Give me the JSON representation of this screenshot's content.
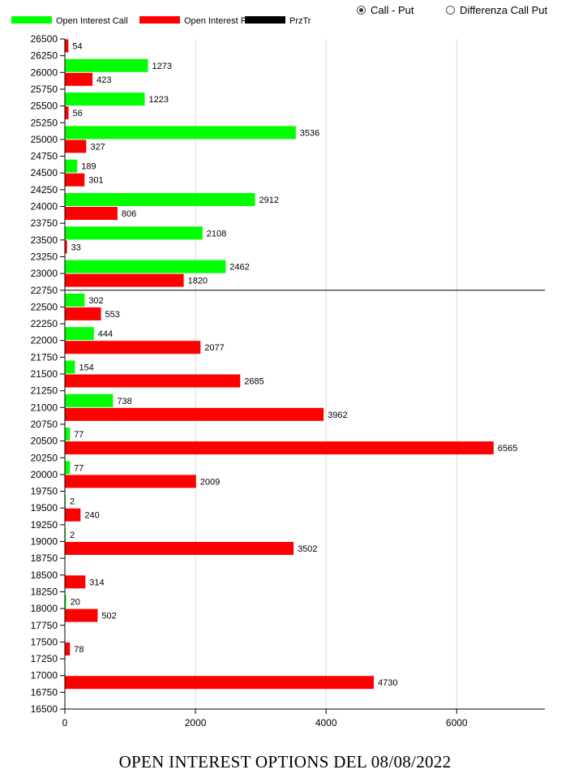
{
  "controls": {
    "radio_options": [
      {
        "label": "Call - Put",
        "checked": true
      },
      {
        "label": "Differenza Call Put",
        "checked": false
      }
    ]
  },
  "footer": {
    "title": "OPEN INTEREST OPTIONS DEL 08/08/2022"
  },
  "chart_data": {
    "type": "bar",
    "orientation": "horizontal",
    "legend": {
      "placement": "top-left",
      "entries": [
        {
          "label": "Open Interest Call",
          "color": "#00ff00"
        },
        {
          "label": "Open Interest Put",
          "color": "#ff0000"
        },
        {
          "label": "PrzTr",
          "color": "#000000"
        }
      ]
    },
    "y_ticks": [
      26500,
      26250,
      26000,
      25750,
      25500,
      25250,
      25000,
      24750,
      24500,
      24250,
      24000,
      23750,
      23500,
      23250,
      23000,
      22750,
      22500,
      22250,
      22000,
      21750,
      21500,
      21250,
      21000,
      20750,
      20500,
      20250,
      20000,
      19750,
      19500,
      19250,
      19000,
      18750,
      18500,
      18250,
      18000,
      17750,
      17500,
      17250,
      17000,
      16750,
      16500
    ],
    "x_ticks": [
      0,
      2000,
      4000,
      6000
    ],
    "xlim": [
      0,
      7350
    ],
    "ylim": [
      16500,
      26500
    ],
    "grid": true,
    "series": [
      {
        "name": "Open Interest Call",
        "color": "#00ff00",
        "points": [
          {
            "strike": 26000,
            "value": 1273
          },
          {
            "strike": 25500,
            "value": 1223
          },
          {
            "strike": 25000,
            "value": 3536
          },
          {
            "strike": 24500,
            "value": 189
          },
          {
            "strike": 24000,
            "value": 2912
          },
          {
            "strike": 23500,
            "value": 2108
          },
          {
            "strike": 23000,
            "value": 2462
          },
          {
            "strike": 22500,
            "value": 302
          },
          {
            "strike": 22000,
            "value": 444
          },
          {
            "strike": 21500,
            "value": 154
          },
          {
            "strike": 21000,
            "value": 738
          },
          {
            "strike": 20500,
            "value": 77
          },
          {
            "strike": 20000,
            "value": 77
          },
          {
            "strike": 19500,
            "value": 2
          },
          {
            "strike": 19000,
            "value": 2
          },
          {
            "strike": 18000,
            "value": 20
          }
        ]
      },
      {
        "name": "Open Interest Put",
        "color": "#ff0000",
        "points": [
          {
            "strike": 26500,
            "value": 54
          },
          {
            "strike": 26000,
            "value": 423
          },
          {
            "strike": 25500,
            "value": 56
          },
          {
            "strike": 25000,
            "value": 327
          },
          {
            "strike": 24500,
            "value": 301
          },
          {
            "strike": 24000,
            "value": 806
          },
          {
            "strike": 23500,
            "value": 33
          },
          {
            "strike": 23000,
            "value": 1820
          },
          {
            "strike": 22500,
            "value": 553
          },
          {
            "strike": 22000,
            "value": 2077
          },
          {
            "strike": 21500,
            "value": 2685
          },
          {
            "strike": 21000,
            "value": 3962
          },
          {
            "strike": 20500,
            "value": 6565
          },
          {
            "strike": 20000,
            "value": 2009
          },
          {
            "strike": 19500,
            "value": 240
          },
          {
            "strike": 19000,
            "value": 3502
          },
          {
            "strike": 18500,
            "value": 314
          },
          {
            "strike": 18000,
            "value": 502
          },
          {
            "strike": 17500,
            "value": 78
          },
          {
            "strike": 17000,
            "value": 4730
          }
        ]
      }
    ],
    "reference_line": {
      "name": "PrzTr",
      "strike": 22750,
      "color": "#000000"
    }
  }
}
